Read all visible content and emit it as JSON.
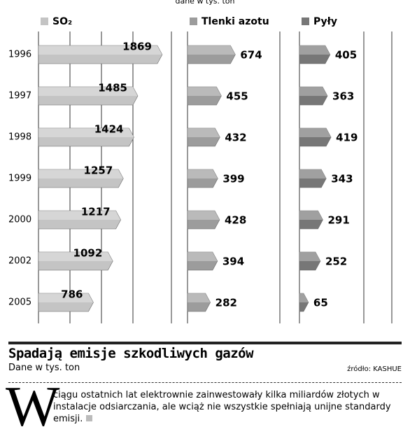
{
  "top_note": "dane w tys. ton",
  "chart_data": [
    {
      "type": "bar",
      "orientation": "horizontal",
      "title": "SO₂",
      "color": "#c4c4c4",
      "categories": [
        "1996",
        "1997",
        "1998",
        "1999",
        "2000",
        "2002",
        "2005"
      ],
      "values": [
        1869,
        1485,
        1424,
        1257,
        1217,
        1092,
        786
      ],
      "xlim": [
        0,
        2090
      ]
    },
    {
      "type": "bar",
      "orientation": "horizontal",
      "title": "Tlenki azotu",
      "color": "#9c9c9c",
      "values": [
        674,
        455,
        432,
        399,
        428,
        394,
        282
      ],
      "xlim": [
        0,
        1450
      ]
    },
    {
      "type": "bar",
      "orientation": "horizontal",
      "title": "Pyły",
      "color": "#777777",
      "values": [
        405,
        363,
        419,
        343,
        291,
        252,
        65
      ],
      "xlim": [
        0,
        1450
      ]
    }
  ],
  "article": {
    "title": "Spadają emisje szkodliwych gazów",
    "subtitle": "Dane w tys. ton",
    "source": "źródło: KASHUE",
    "dropcap": "W",
    "body": "ciągu ostatnich lat elektrownie zainwestowały kilka miliardów złotych w instalacje odsiarczania, ale wciąż nie wszystkie spełniają unijne standardy emisji."
  }
}
